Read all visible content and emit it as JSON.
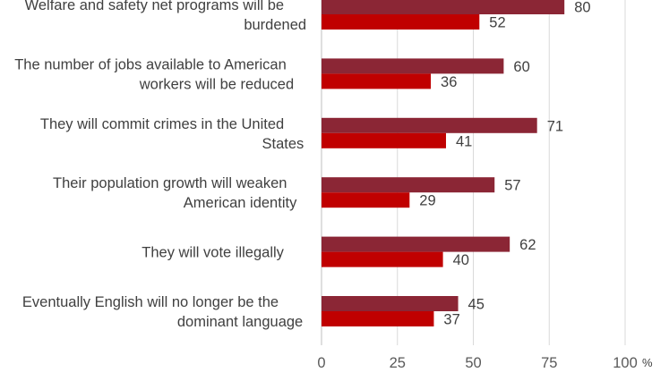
{
  "chart_data": {
    "type": "bar",
    "orientation": "horizontal",
    "title": "",
    "xlabel": "",
    "ylabel": "",
    "unit": "%",
    "xlim": [
      0,
      100
    ],
    "ticks": [
      0,
      25,
      50,
      75,
      100
    ],
    "grid": true,
    "legend": "none",
    "categories": [
      [
        "Welfare and safety net programs will be",
        "burdened"
      ],
      [
        "The number of jobs available to American",
        "workers will be reduced"
      ],
      [
        "They will commit crimes in the United",
        "States"
      ],
      [
        "Their population growth will weaken",
        "American identity"
      ],
      [
        "They will vote illegally"
      ],
      [
        "Eventually English will no longer be the",
        "dominant language"
      ]
    ],
    "series": [
      {
        "values": [
          80,
          60,
          71,
          57,
          62,
          45
        ],
        "color": "#8b2635"
      },
      {
        "values": [
          52,
          36,
          41,
          29,
          40,
          37
        ],
        "color": "#c00000"
      }
    ]
  }
}
